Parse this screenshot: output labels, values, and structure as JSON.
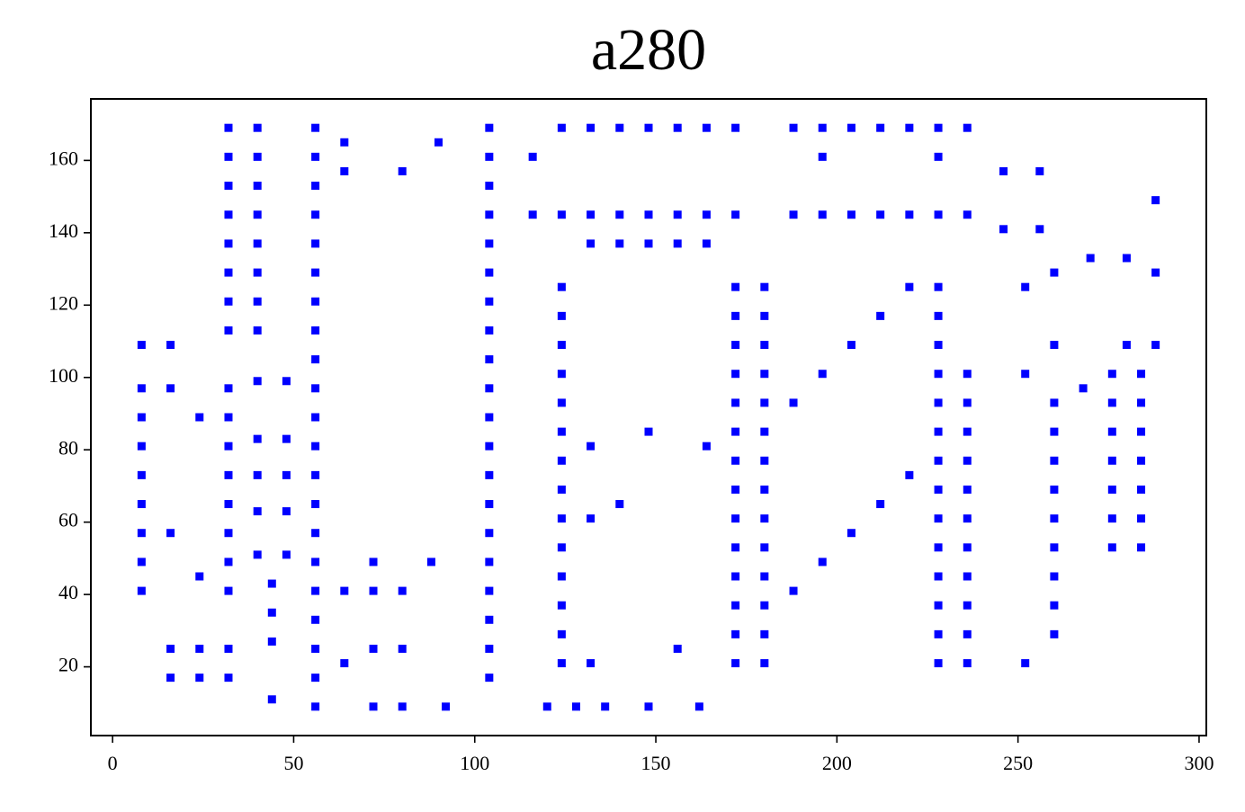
{
  "chart_data": {
    "type": "scatter",
    "title": "a280",
    "color": "#0000ff",
    "xlim": [
      -6,
      302
    ],
    "ylim": [
      1,
      177
    ],
    "xticks": [
      0,
      50,
      100,
      150,
      200,
      250,
      300
    ],
    "yticks": [
      20,
      40,
      60,
      80,
      100,
      120,
      140,
      160
    ],
    "x": [
      8,
      8,
      8,
      8,
      8,
      8,
      8,
      8,
      8,
      16,
      16,
      16,
      16,
      16,
      24,
      24,
      24,
      24,
      32,
      32,
      32,
      32,
      32,
      32,
      32,
      32,
      32,
      32,
      32,
      32,
      32,
      32,
      32,
      32,
      32,
      32,
      40,
      40,
      40,
      40,
      40,
      40,
      40,
      40,
      40,
      40,
      40,
      40,
      40,
      44,
      44,
      44,
      44,
      48,
      48,
      48,
      48,
      48,
      56,
      56,
      56,
      56,
      56,
      56,
      56,
      56,
      56,
      56,
      56,
      56,
      56,
      56,
      56,
      56,
      56,
      56,
      56,
      56,
      56,
      64,
      64,
      64,
      64,
      72,
      72,
      72,
      72,
      80,
      80,
      80,
      80,
      88,
      90,
      92,
      104,
      104,
      104,
      104,
      104,
      104,
      104,
      104,
      104,
      104,
      104,
      104,
      104,
      104,
      104,
      104,
      104,
      104,
      104,
      104,
      116,
      116,
      120,
      124,
      124,
      124,
      124,
      124,
      124,
      124,
      124,
      124,
      124,
      124,
      124,
      124,
      124,
      124,
      124,
      128,
      132,
      132,
      132,
      132,
      132,
      132,
      136,
      140,
      140,
      140,
      140,
      148,
      148,
      148,
      148,
      148,
      156,
      156,
      156,
      156,
      162,
      164,
      164,
      164,
      164,
      172,
      172,
      172,
      172,
      172,
      172,
      172,
      172,
      172,
      172,
      172,
      172,
      172,
      172,
      172,
      172,
      180,
      180,
      180,
      180,
      180,
      180,
      180,
      180,
      180,
      180,
      180,
      180,
      180,
      180,
      188,
      188,
      188,
      188,
      196,
      196,
      196,
      196,
      196,
      204,
      204,
      204,
      204,
      212,
      212,
      212,
      212,
      220,
      220,
      220,
      220,
      228,
      228,
      228,
      228,
      228,
      228,
      228,
      228,
      228,
      228,
      228,
      228,
      228,
      228,
      228,
      228,
      228,
      236,
      236,
      236,
      236,
      236,
      236,
      236,
      236,
      236,
      236,
      236,
      236,
      236,
      246,
      246,
      252,
      252,
      252,
      256,
      256,
      260,
      260,
      260,
      260,
      260,
      260,
      260,
      260,
      260,
      260,
      260,
      268,
      270,
      276,
      276,
      276,
      276,
      276,
      276,
      276,
      280,
      280,
      284,
      284,
      284,
      284,
      284,
      284,
      284,
      288,
      288,
      288
    ],
    "values": [
      109,
      97,
      89,
      81,
      73,
      65,
      57,
      49,
      41,
      109,
      97,
      57,
      25,
      17,
      89,
      45,
      25,
      17,
      169,
      161,
      153,
      145,
      137,
      129,
      121,
      113,
      97,
      89,
      81,
      73,
      65,
      57,
      49,
      41,
      25,
      17,
      169,
      161,
      153,
      145,
      137,
      129,
      121,
      113,
      99,
      83,
      73,
      63,
      51,
      43,
      35,
      27,
      11,
      99,
      83,
      73,
      63,
      51,
      169,
      161,
      153,
      145,
      137,
      129,
      121,
      113,
      105,
      97,
      89,
      81,
      73,
      65,
      57,
      49,
      41,
      33,
      25,
      17,
      9,
      165,
      157,
      41,
      21,
      49,
      41,
      25,
      9,
      157,
      41,
      25,
      9,
      49,
      165,
      9,
      169,
      161,
      153,
      145,
      137,
      129,
      121,
      113,
      105,
      97,
      89,
      81,
      73,
      65,
      57,
      49,
      41,
      33,
      25,
      17,
      161,
      145,
      9,
      169,
      145,
      125,
      117,
      109,
      101,
      93,
      85,
      77,
      69,
      61,
      53,
      45,
      37,
      29,
      21,
      9,
      169,
      145,
      137,
      81,
      61,
      21,
      9,
      169,
      145,
      137,
      65,
      169,
      145,
      137,
      85,
      9,
      169,
      145,
      137,
      25,
      9,
      169,
      145,
      137,
      81,
      169,
      145,
      125,
      117,
      109,
      101,
      93,
      85,
      77,
      69,
      61,
      53,
      45,
      37,
      29,
      21,
      125,
      117,
      109,
      101,
      93,
      85,
      77,
      69,
      61,
      53,
      45,
      37,
      29,
      21,
      169,
      145,
      93,
      41,
      169,
      161,
      145,
      101,
      49,
      169,
      145,
      109,
      57,
      169,
      145,
      117,
      65,
      169,
      145,
      125,
      73,
      169,
      161,
      145,
      125,
      117,
      109,
      101,
      93,
      85,
      77,
      69,
      61,
      53,
      45,
      37,
      29,
      21,
      169,
      145,
      101,
      93,
      85,
      77,
      69,
      61,
      53,
      45,
      37,
      29,
      21,
      157,
      141,
      125,
      101,
      21,
      157,
      141,
      129,
      109,
      93,
      85,
      77,
      69,
      61,
      53,
      45,
      37,
      29,
      97,
      133,
      101,
      93,
      85,
      77,
      69,
      61,
      53,
      133,
      109,
      101,
      93,
      85,
      77,
      69,
      61,
      53,
      149,
      129,
      109
    ]
  }
}
